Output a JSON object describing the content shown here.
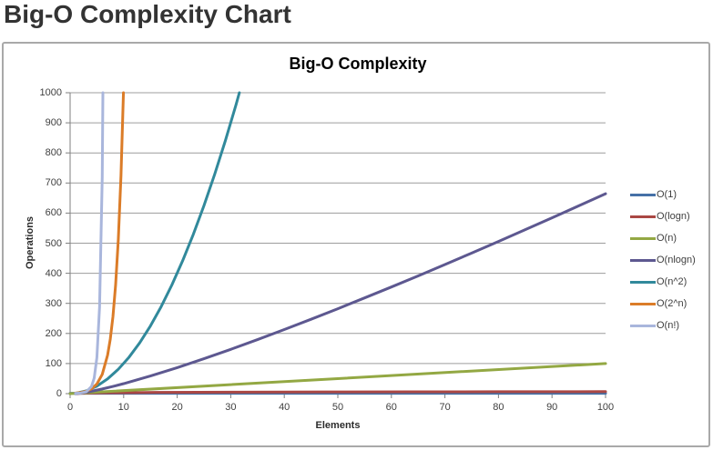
{
  "page": {
    "title": "Big-O Complexity Chart"
  },
  "chart": {
    "title": "Big-O Complexity",
    "xlabel": "Elements",
    "ylabel": "Operations"
  },
  "colors": {
    "gridline": "#9c9c9c",
    "axis": "#7f7f7f",
    "tick": "#7f7f7f",
    "text": "#3f3f3f",
    "box_border": "#a9a9a9",
    "heading": "#333333"
  },
  "chart_data": {
    "type": "line",
    "title": "Big-O Complexity",
    "xlabel": "Elements",
    "ylabel": "Operations",
    "xlim": [
      0,
      100
    ],
    "ylim": [
      0,
      1000
    ],
    "x_ticks": [
      0,
      10,
      20,
      30,
      40,
      50,
      60,
      70,
      80,
      90,
      100
    ],
    "y_ticks": [
      0,
      100,
      200,
      300,
      400,
      500,
      600,
      700,
      800,
      900,
      1000
    ],
    "grid": "horizontal",
    "legend_position": "right",
    "series": [
      {
        "name": "O(1)",
        "color": "#4571a7",
        "points": [
          [
            0,
            1
          ],
          [
            100,
            1
          ]
        ]
      },
      {
        "name": "O(logn)",
        "color": "#aa4744",
        "points": [
          [
            1,
            0
          ],
          [
            2,
            1
          ],
          [
            3,
            1.58
          ],
          [
            4,
            2
          ],
          [
            6,
            2.58
          ],
          [
            8,
            3
          ],
          [
            12,
            3.58
          ],
          [
            16,
            4
          ],
          [
            24,
            4.58
          ],
          [
            32,
            5
          ],
          [
            48,
            5.58
          ],
          [
            64,
            6
          ],
          [
            80,
            6.32
          ],
          [
            100,
            6.64
          ]
        ]
      },
      {
        "name": "O(n)",
        "color": "#93a843",
        "points": [
          [
            0,
            0
          ],
          [
            100,
            100
          ]
        ]
      },
      {
        "name": "O(nlogn)",
        "color": "#5d5890",
        "points": [
          [
            1,
            0
          ],
          [
            2,
            2
          ],
          [
            4,
            8
          ],
          [
            6,
            15.5
          ],
          [
            8,
            24
          ],
          [
            10,
            33.2
          ],
          [
            15,
            58.6
          ],
          [
            20,
            86.4
          ],
          [
            25,
            116.1
          ],
          [
            30,
            147.2
          ],
          [
            35,
            179.5
          ],
          [
            40,
            212.9
          ],
          [
            45,
            247.2
          ],
          [
            50,
            282.2
          ],
          [
            55,
            318.2
          ],
          [
            60,
            354.4
          ],
          [
            65,
            391.4
          ],
          [
            70,
            429
          ],
          [
            75,
            467.2
          ],
          [
            80,
            505.8
          ],
          [
            85,
            544.8
          ],
          [
            90,
            584.3
          ],
          [
            95,
            624.2
          ],
          [
            100,
            664.4
          ]
        ]
      },
      {
        "name": "O(n^2)",
        "color": "#31899b",
        "points": [
          [
            1,
            1
          ],
          [
            3,
            9
          ],
          [
            5,
            25
          ],
          [
            7,
            49
          ],
          [
            9,
            81
          ],
          [
            11,
            121
          ],
          [
            13,
            169
          ],
          [
            15,
            225
          ],
          [
            17,
            289
          ],
          [
            19,
            361
          ],
          [
            21,
            441
          ],
          [
            23,
            529
          ],
          [
            25,
            625
          ],
          [
            27,
            729
          ],
          [
            29,
            841
          ],
          [
            31,
            961
          ],
          [
            33,
            1089
          ]
        ]
      },
      {
        "name": "O(2^n)",
        "color": "#db7c28",
        "points": [
          [
            1,
            2
          ],
          [
            2,
            4
          ],
          [
            3,
            8
          ],
          [
            4,
            16
          ],
          [
            5,
            32
          ],
          [
            6,
            64
          ],
          [
            7,
            128
          ],
          [
            7.5,
            181
          ],
          [
            8,
            256
          ],
          [
            8.5,
            362
          ],
          [
            9,
            512
          ],
          [
            9.5,
            724
          ],
          [
            10,
            1024
          ],
          [
            10.5,
            1448
          ]
        ]
      },
      {
        "name": "O(n!)",
        "color": "#a9b6dc",
        "points": [
          [
            1,
            1
          ],
          [
            2,
            2
          ],
          [
            3,
            6
          ],
          [
            4,
            24
          ],
          [
            4.5,
            52
          ],
          [
            5,
            120
          ],
          [
            5.5,
            288
          ],
          [
            6,
            720
          ],
          [
            6.5,
            1871
          ],
          [
            7,
            5040
          ]
        ]
      }
    ]
  }
}
